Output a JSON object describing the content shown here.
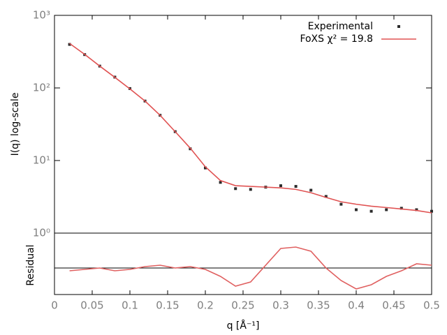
{
  "chart_data": [
    {
      "type": "line",
      "y_label": "I(q) log-scale",
      "log_y": true,
      "legend": "top right",
      "x": [
        0.02,
        0.04,
        0.06,
        0.08,
        0.1,
        0.12,
        0.14,
        0.16,
        0.18,
        0.2,
        0.22,
        0.24,
        0.26,
        0.28,
        0.3,
        0.32,
        0.34,
        0.36,
        0.38,
        0.4,
        0.42,
        0.44,
        0.46,
        0.48,
        0.5
      ],
      "series": [
        {
          "name": "Experimental",
          "color": "#2b2b2b",
          "style": "points",
          "values": [
            398,
            288,
            200,
            141,
            98,
            66,
            42,
            25,
            14.5,
            7.9,
            5.0,
            4.1,
            4.0,
            4.3,
            4.5,
            4.4,
            3.9,
            3.2,
            2.5,
            2.1,
            2.0,
            2.1,
            2.2,
            2.1,
            2.0
          ]
        },
        {
          "name": "FoXS χ² = 19.8",
          "color": "#e05252",
          "style": "line",
          "values": [
            410,
            290,
            200,
            140,
            97,
            66,
            42,
            25,
            14.8,
            8.2,
            5.3,
            4.5,
            4.4,
            4.3,
            4.2,
            4.0,
            3.6,
            3.1,
            2.7,
            2.5,
            2.35,
            2.25,
            2.15,
            2.05,
            1.9
          ]
        }
      ],
      "xlim": [
        0,
        0.5
      ],
      "ylim": [
        1,
        1000
      ],
      "yticks": [
        {
          "value": 1,
          "label": "10⁰"
        },
        {
          "value": 10,
          "label": "10¹"
        },
        {
          "value": 100,
          "label": "10²"
        },
        {
          "value": 1000,
          "label": "10³"
        }
      ]
    },
    {
      "type": "line",
      "y_label": "Residual",
      "x_label": "q [Å⁻¹]",
      "x": [
        0.02,
        0.04,
        0.06,
        0.08,
        0.1,
        0.12,
        0.14,
        0.16,
        0.18,
        0.2,
        0.22,
        0.24,
        0.26,
        0.28,
        0.3,
        0.32,
        0.34,
        0.36,
        0.38,
        0.4,
        0.42,
        0.44,
        0.46,
        0.48,
        0.5
      ],
      "series": [
        {
          "name": "Residual",
          "color": "#e06060",
          "style": "line",
          "values": [
            -0.2,
            -0.1,
            0.0,
            -0.2,
            -0.1,
            0.1,
            0.2,
            0.0,
            0.1,
            -0.1,
            -0.6,
            -1.3,
            -1.0,
            0.2,
            1.4,
            1.5,
            1.2,
            0.0,
            -0.9,
            -1.5,
            -1.2,
            -0.6,
            -0.2,
            0.3,
            0.2
          ]
        }
      ],
      "xlim": [
        0,
        0.5
      ],
      "ylim": [
        -1.9,
        2.5
      ],
      "xticks": [
        0,
        0.05,
        0.1,
        0.15,
        0.2,
        0.25,
        0.3,
        0.35,
        0.4,
        0.45,
        0.5
      ]
    }
  ]
}
